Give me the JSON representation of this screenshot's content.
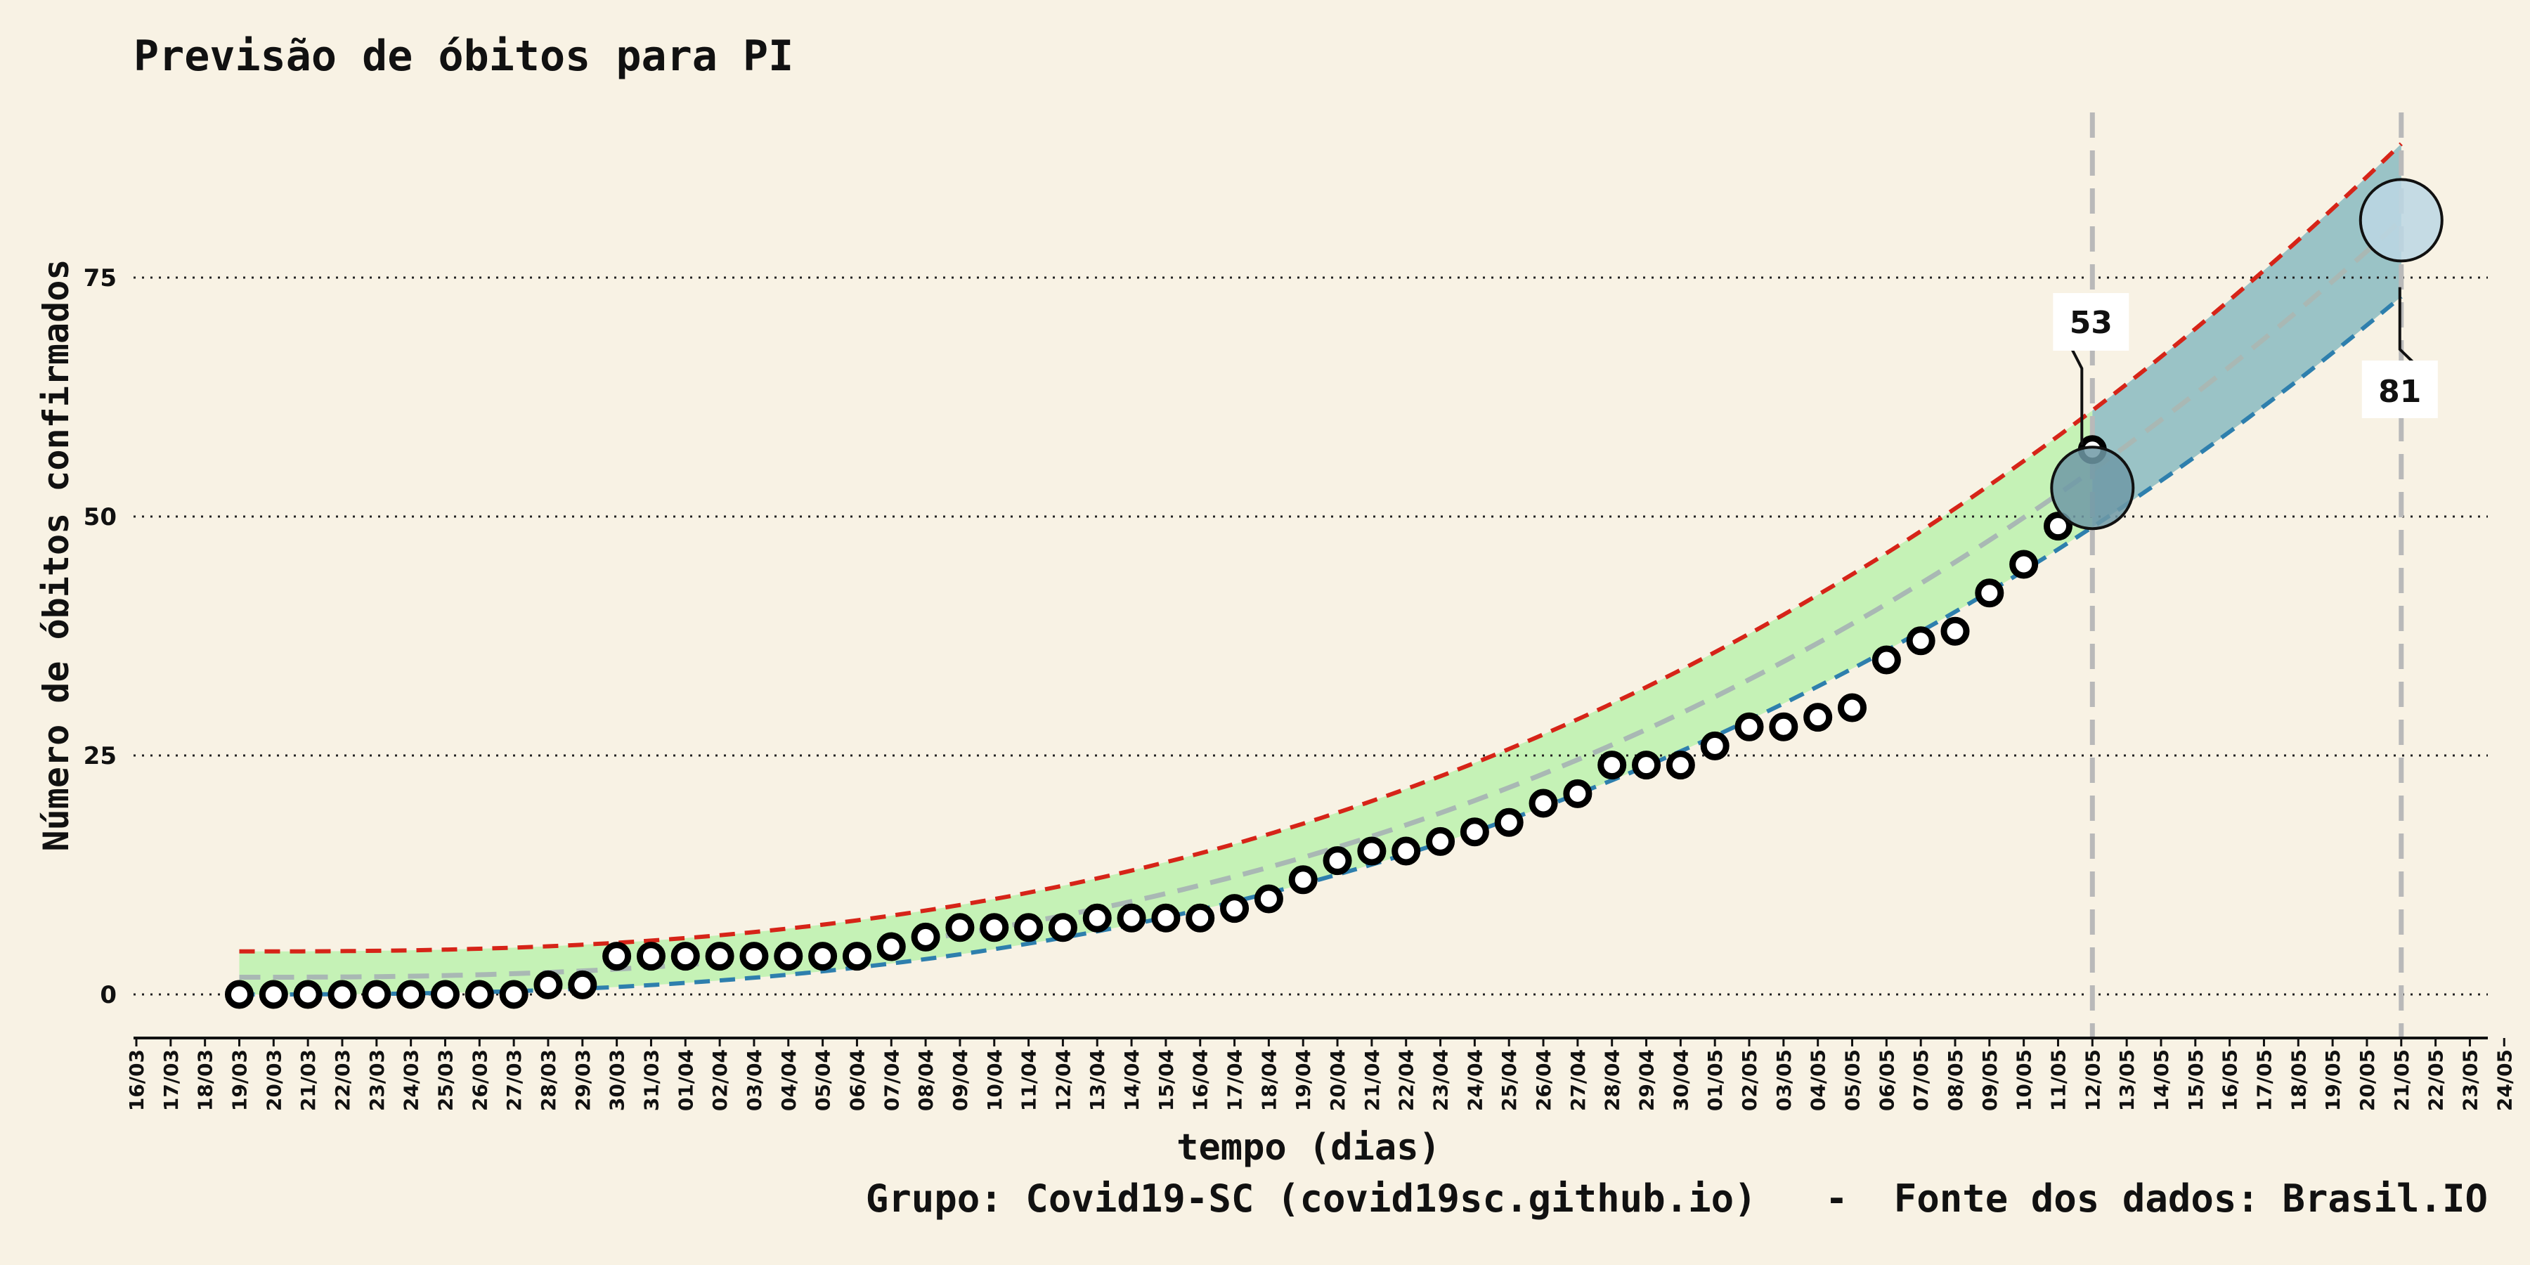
{
  "chart_data": {
    "type": "line",
    "title": "Previsão de óbitos para PI",
    "xlabel": "tempo (dias)",
    "ylabel": "Número de óbitos confirmados",
    "footer": "Grupo: Covid19-SC (covid19sc.github.io)   -  Fonte dos dados: Brasil.IO",
    "yticks": [
      0,
      25,
      50,
      75
    ],
    "ylim": [
      -4.5,
      93
    ],
    "x_tick_labels": [
      "16/03",
      "17/03",
      "18/03",
      "19/03",
      "20/03",
      "21/03",
      "22/03",
      "23/03",
      "24/03",
      "25/03",
      "26/03",
      "27/03",
      "28/03",
      "29/03",
      "30/03",
      "31/03",
      "01/04",
      "02/04",
      "03/04",
      "04/04",
      "05/04",
      "06/04",
      "07/04",
      "08/04",
      "09/04",
      "10/04",
      "11/04",
      "12/04",
      "13/04",
      "14/04",
      "15/04",
      "16/04",
      "17/04",
      "18/04",
      "19/04",
      "20/04",
      "21/04",
      "22/04",
      "23/04",
      "24/04",
      "25/04",
      "26/04",
      "27/04",
      "28/04",
      "29/04",
      "30/04",
      "01/05",
      "02/05",
      "03/05",
      "04/05",
      "05/05",
      "06/05",
      "07/05",
      "08/05",
      "09/05",
      "10/05",
      "11/05",
      "12/05",
      "13/05",
      "14/05",
      "15/05",
      "16/05",
      "17/05",
      "18/05",
      "19/05",
      "20/05",
      "21/05",
      "22/05",
      "23/05",
      "24/05"
    ],
    "observed": {
      "start_date": "19/03",
      "values": [
        0,
        0,
        0,
        0,
        0,
        0,
        0,
        0,
        0,
        1,
        1,
        4,
        4,
        4,
        4,
        4,
        4,
        4,
        4,
        5,
        6,
        7,
        7,
        7,
        7,
        8,
        8,
        8,
        8,
        9,
        10,
        12,
        14,
        15,
        15,
        16,
        17,
        18,
        20,
        21,
        24,
        24,
        24,
        26,
        28,
        28,
        29,
        30,
        35,
        37,
        38,
        42,
        45,
        49,
        57
      ]
    },
    "forecast": {
      "start_date": "19/03",
      "end_date": "21/05",
      "upper_start": 4.5,
      "lower_start": 0,
      "central_start": 1.8,
      "upper_end": 89,
      "lower_end": 73,
      "central_end": 81
    },
    "markers": [
      {
        "date": "12/05",
        "value": 53,
        "label": "53"
      },
      {
        "date": "21/05",
        "value": 81,
        "label": "81"
      }
    ],
    "colors": {
      "background": "#f8f2e4",
      "band_fit": "#c5f2b6",
      "band_forecast": "#9ac3c6",
      "upper_line": "#d62418",
      "lower_line": "#2e7fad",
      "central_line": "#a9b8b4",
      "vline": "#b9b9b9",
      "marker_fit": "#6f99a6",
      "marker_forecast": "#bcd7e4",
      "grid": "#222222"
    },
    "grid": "horizontal-dotted"
  }
}
